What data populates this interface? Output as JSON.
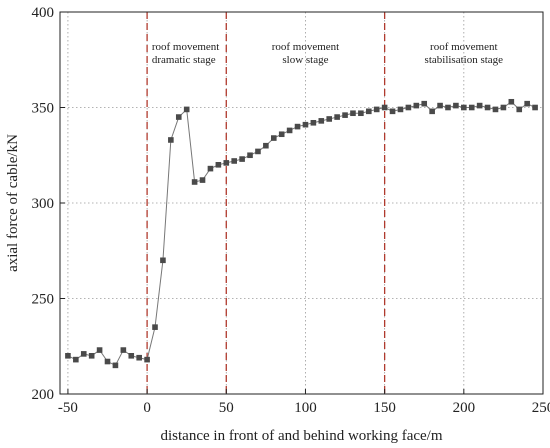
{
  "chart_data": {
    "type": "line",
    "xlabel": "distance in front of and behind working face/m",
    "ylabel": "axial force of cable/kN",
    "xlim": [
      -55,
      250
    ],
    "ylim": [
      200,
      400
    ],
    "xticks": [
      -50,
      0,
      50,
      100,
      150,
      200,
      250
    ],
    "yticks": [
      200,
      250,
      300,
      350,
      400
    ],
    "grid": "dotted",
    "series": [
      {
        "x": [
          -50,
          -45,
          -40,
          -35,
          -30,
          -25,
          -20,
          -15,
          -10,
          -5,
          0,
          5,
          10,
          15,
          20,
          25,
          30,
          35,
          40,
          45,
          50,
          55,
          60,
          65,
          70,
          75,
          80,
          85,
          90,
          95,
          100,
          105,
          110,
          115,
          120,
          125,
          130,
          135,
          140,
          145,
          150,
          155,
          160,
          165,
          170,
          175,
          180,
          185,
          190,
          195,
          200,
          205,
          210,
          215,
          220,
          225,
          230,
          235,
          240,
          245
        ],
        "y": [
          220,
          218,
          221,
          220,
          223,
          217,
          215,
          223,
          220,
          219,
          218,
          235,
          270,
          333,
          345,
          349,
          311,
          312,
          318,
          320,
          321,
          322,
          323,
          325,
          327,
          330,
          334,
          336,
          338,
          340,
          341,
          342,
          343,
          344,
          345,
          346,
          347,
          347,
          348,
          349,
          350,
          348,
          349,
          350,
          351,
          352,
          348,
          351,
          350,
          351,
          350,
          350,
          351,
          350,
          349,
          350,
          353,
          349,
          352,
          350
        ],
        "color": "#4a4a4a"
      }
    ],
    "stage_boundaries": [
      0,
      50,
      150
    ],
    "boundary_color": "#b03a2e",
    "annotations": [
      {
        "text": [
          "roof movement",
          "dramatic stage"
        ],
        "x": 3,
        "y": 380,
        "align": "start"
      },
      {
        "text": [
          "roof movement",
          "slow stage"
        ],
        "x": 100,
        "y": 380,
        "align": "middle"
      },
      {
        "text": [
          "roof movement",
          "stabilisation stage"
        ],
        "x": 200,
        "y": 380,
        "align": "middle"
      }
    ]
  }
}
